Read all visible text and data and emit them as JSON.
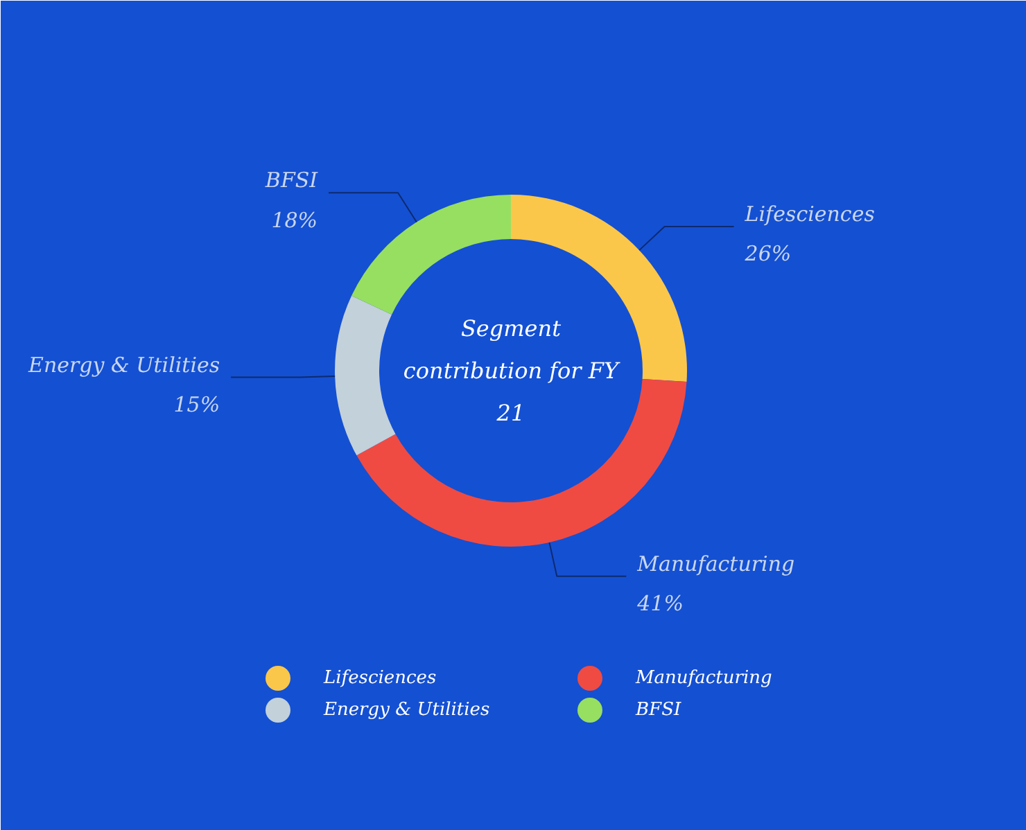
{
  "chart_data": {
    "type": "donut",
    "title": "Segment contribution for FY 21",
    "categories": [
      "Lifesciences",
      "Manufacturing",
      "Energy & Utilities",
      "BFSI"
    ],
    "values": [
      26,
      41,
      15,
      18
    ],
    "colors": [
      "#fbc74a",
      "#ef4b43",
      "#c3d1da",
      "#97df60"
    ],
    "value_labels": [
      "26%",
      "41%",
      "15%",
      "18%"
    ],
    "legend": "bottom"
  }
}
